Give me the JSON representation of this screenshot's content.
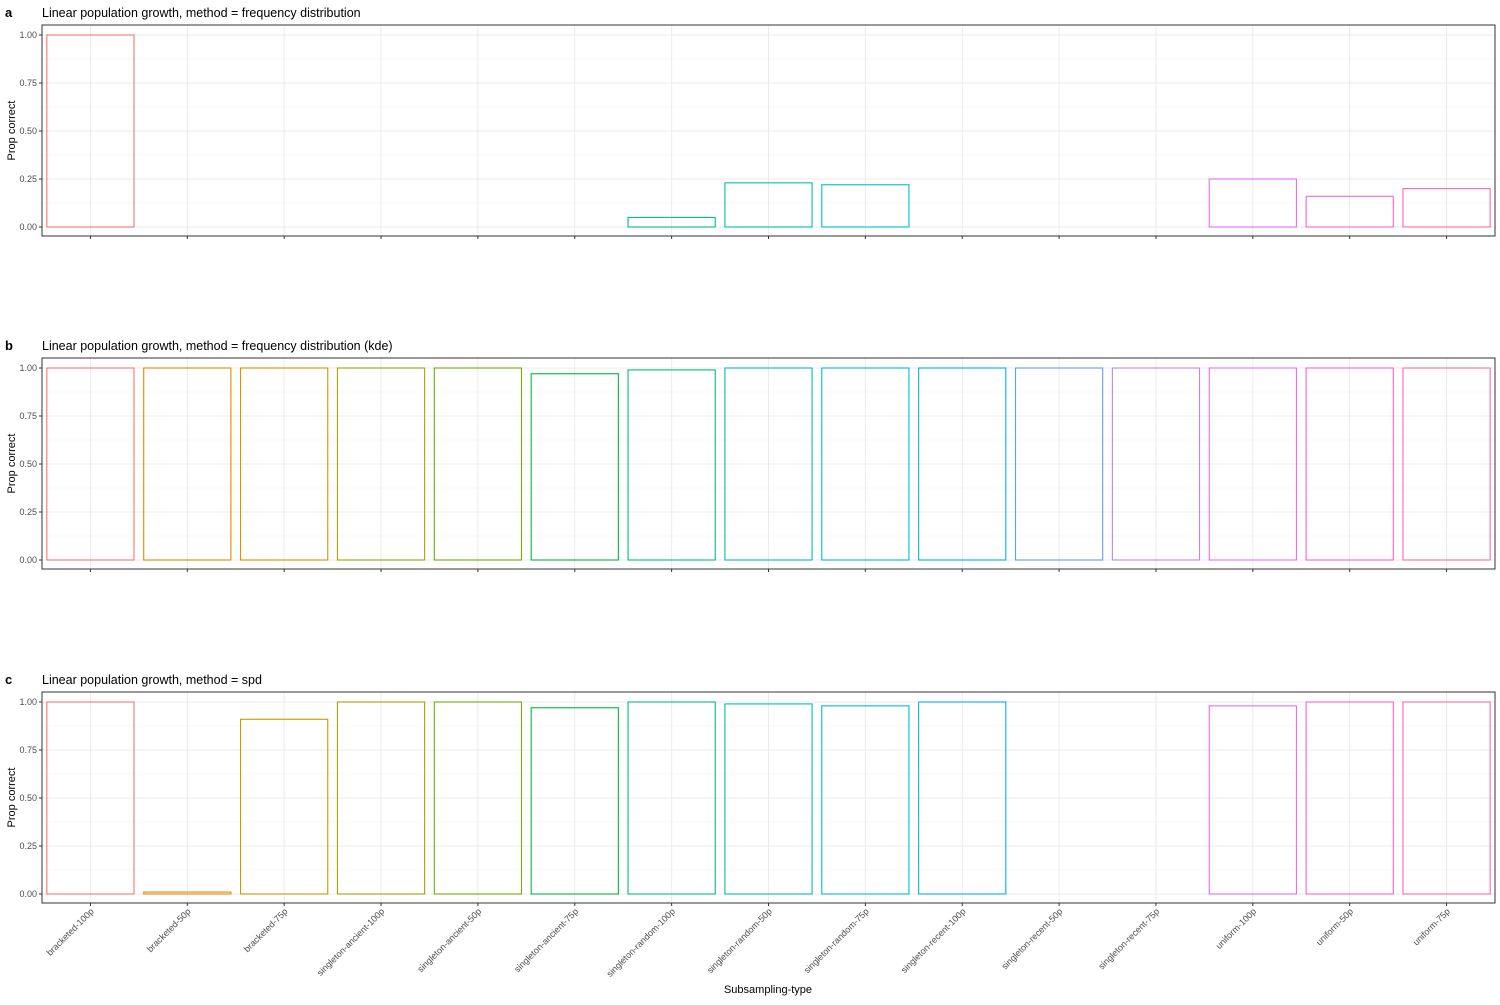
{
  "figure": {
    "xlabel": "Subsampling-type",
    "ylabel": "Prop correct"
  },
  "categories": [
    "bracketed-100p",
    "bracketed-50p",
    "bracketed-75p",
    "singleton-ancient-100p",
    "singleton-ancient-50p",
    "singleton-ancient-75p",
    "singleton-random-100p",
    "singleton-random-50p",
    "singleton-random-75p",
    "singleton-recent-100p",
    "singleton-recent-50p",
    "singleton-recent-75p",
    "uniform-100p",
    "uniform-50p",
    "uniform-75p"
  ],
  "colors": [
    "#F8766D",
    "#E58700",
    "#C99800",
    "#A3A500",
    "#6BB100",
    "#00BA38",
    "#00BF7D",
    "#00C0AF",
    "#00BCD8",
    "#00B0F6",
    "#619CFF",
    "#B983FF",
    "#E76BF3",
    "#FD61D1",
    "#FF67A4"
  ],
  "y_ticks": [
    "0.00",
    "0.25",
    "0.50",
    "0.75",
    "1.00"
  ],
  "chart_data": [
    {
      "type": "bar",
      "tag": "a",
      "title": "Linear population growth, method = frequency distribution",
      "ylabel": "Prop correct",
      "ylim": [
        0,
        1
      ],
      "values": [
        1.0,
        0.0,
        0.0,
        0.0,
        0.0,
        0.0,
        0.05,
        0.23,
        0.22,
        0.0,
        0.0,
        0.0,
        0.25,
        0.16,
        0.2
      ]
    },
    {
      "type": "bar",
      "tag": "b",
      "title": "Linear population growth, method = frequency distribution (kde)",
      "ylabel": "Prop correct",
      "ylim": [
        0,
        1
      ],
      "values": [
        1.0,
        1.0,
        1.0,
        1.0,
        1.0,
        0.97,
        0.99,
        1.0,
        1.0,
        1.0,
        1.0,
        1.0,
        1.0,
        1.0,
        1.0
      ]
    },
    {
      "type": "bar",
      "tag": "c",
      "title": "Linear population growth, method = spd",
      "ylabel": "Prop correct",
      "xlabel": "Subsampling-type",
      "ylim": [
        0,
        1
      ],
      "values": [
        1.0,
        0.01,
        0.91,
        1.0,
        1.0,
        0.97,
        1.0,
        0.99,
        0.98,
        1.0,
        0.0,
        0.0,
        0.98,
        1.0,
        1.0
      ]
    }
  ]
}
